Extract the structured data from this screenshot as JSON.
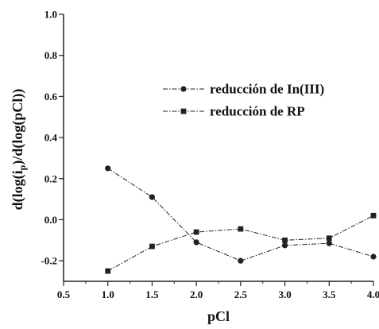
{
  "chart_data": {
    "type": "line",
    "xlabel": "pCl",
    "ylabel_parts": [
      "d(log(i",
      "p",
      ")/d(log(pCl))"
    ],
    "xlim": [
      0.5,
      4.0
    ],
    "ylim": [
      -0.3,
      1.0
    ],
    "xticks": [
      "0.5",
      "1.0",
      "1.5",
      "2.0",
      "2.5",
      "3.0",
      "3.5",
      "4.0"
    ],
    "xtick_values": [
      0.5,
      1.0,
      1.5,
      2.0,
      2.5,
      3.0,
      3.5,
      4.0
    ],
    "yticks": [
      "-0.2",
      "0.0",
      "0.2",
      "0.4",
      "0.6",
      "0.8",
      "1.0"
    ],
    "ytick_values": [
      -0.2,
      0.0,
      0.2,
      0.4,
      0.6,
      0.8,
      1.0
    ],
    "x": [
      1.0,
      1.5,
      2.0,
      2.5,
      3.0,
      3.5,
      4.0
    ],
    "series": [
      {
        "name": "reducción de In(III)",
        "marker": "circle",
        "values": [
          0.25,
          0.11,
          -0.11,
          -0.2,
          -0.125,
          -0.115,
          -0.18
        ]
      },
      {
        "name": "reducción de RP",
        "marker": "square",
        "values": [
          -0.25,
          -0.13,
          -0.06,
          -0.045,
          -0.1,
          -0.09,
          0.02
        ]
      }
    ],
    "legend_position": "upper-right",
    "grid": false,
    "line_color": "#222222"
  }
}
